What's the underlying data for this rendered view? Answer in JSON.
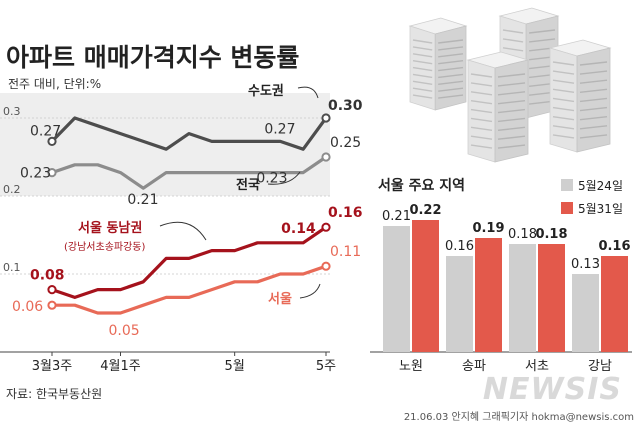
{
  "title": "아파트 매매가격지수 변동률",
  "subtitle": "전주 대비, 단위:%",
  "source": "자료: 한국부동산원",
  "credit": "21.06.03 안지혜 그래픽기자 hokma@newsis.com",
  "watermark": "NEWSIS",
  "colors": {
    "capital": "#4d4d4d",
    "national": "#8c8c8c",
    "gangnam4": "#a5121c",
    "seoul": "#e86a57",
    "bar_prev": "#cfcfcf",
    "bar_curr": "#e3594b"
  },
  "chart_data": [
    {
      "type": "line",
      "x_labels": [
        "3월3주",
        "4월1주",
        "5월",
        "5주"
      ],
      "y_ticks": [
        "0.3",
        "0.2",
        "0.1"
      ],
      "ylim": [
        0,
        0.32
      ],
      "grid": true,
      "series": [
        {
          "name": "수도권",
          "values": [
            0.27,
            0.3,
            0.29,
            0.28,
            0.27,
            0.26,
            0.28,
            0.27,
            0.27,
            0.27,
            0.27,
            0.26,
            0.3
          ],
          "labels": [
            {
              "index": 0,
              "text": "0.27"
            },
            {
              "index": 10,
              "text": "0.27"
            },
            {
              "index": 12,
              "text": "0.30"
            }
          ]
        },
        {
          "name": "전국",
          "values": [
            0.23,
            0.24,
            0.24,
            0.23,
            0.21,
            0.23,
            0.23,
            0.23,
            0.23,
            0.23,
            0.23,
            0.23,
            0.25
          ],
          "labels": [
            {
              "index": 0,
              "text": "0.23"
            },
            {
              "index": 4,
              "text": "0.21"
            },
            {
              "index": 10,
              "text": "0.23"
            },
            {
              "index": 12,
              "text": "0.25"
            }
          ]
        },
        {
          "name": "서울 동남권",
          "sub_label": "(강남서초송파강동)",
          "values": [
            0.08,
            0.07,
            0.08,
            0.08,
            0.09,
            0.12,
            0.12,
            0.13,
            0.13,
            0.14,
            0.14,
            0.14,
            0.16
          ],
          "labels": [
            {
              "index": 0,
              "text": "0.08"
            },
            {
              "index": 11,
              "text": "0.14"
            },
            {
              "index": 12,
              "text": "0.16"
            }
          ]
        },
        {
          "name": "서울",
          "values": [
            0.06,
            0.06,
            0.05,
            0.05,
            0.06,
            0.07,
            0.07,
            0.08,
            0.09,
            0.09,
            0.1,
            0.1,
            0.11
          ],
          "labels": [
            {
              "index": 0,
              "text": "0.06"
            },
            {
              "index": 3,
              "text": "0.05"
            },
            {
              "index": 12,
              "text": "0.11"
            }
          ]
        }
      ]
    },
    {
      "type": "bar",
      "title": "서울 주요 지역",
      "categories": [
        "노원",
        "송파",
        "서초",
        "강남"
      ],
      "series": [
        {
          "name": "5월24일",
          "values": [
            0.21,
            0.16,
            0.18,
            0.13
          ]
        },
        {
          "name": "5월31일",
          "values": [
            0.22,
            0.19,
            0.18,
            0.16
          ]
        }
      ],
      "legend": "top-right"
    }
  ]
}
